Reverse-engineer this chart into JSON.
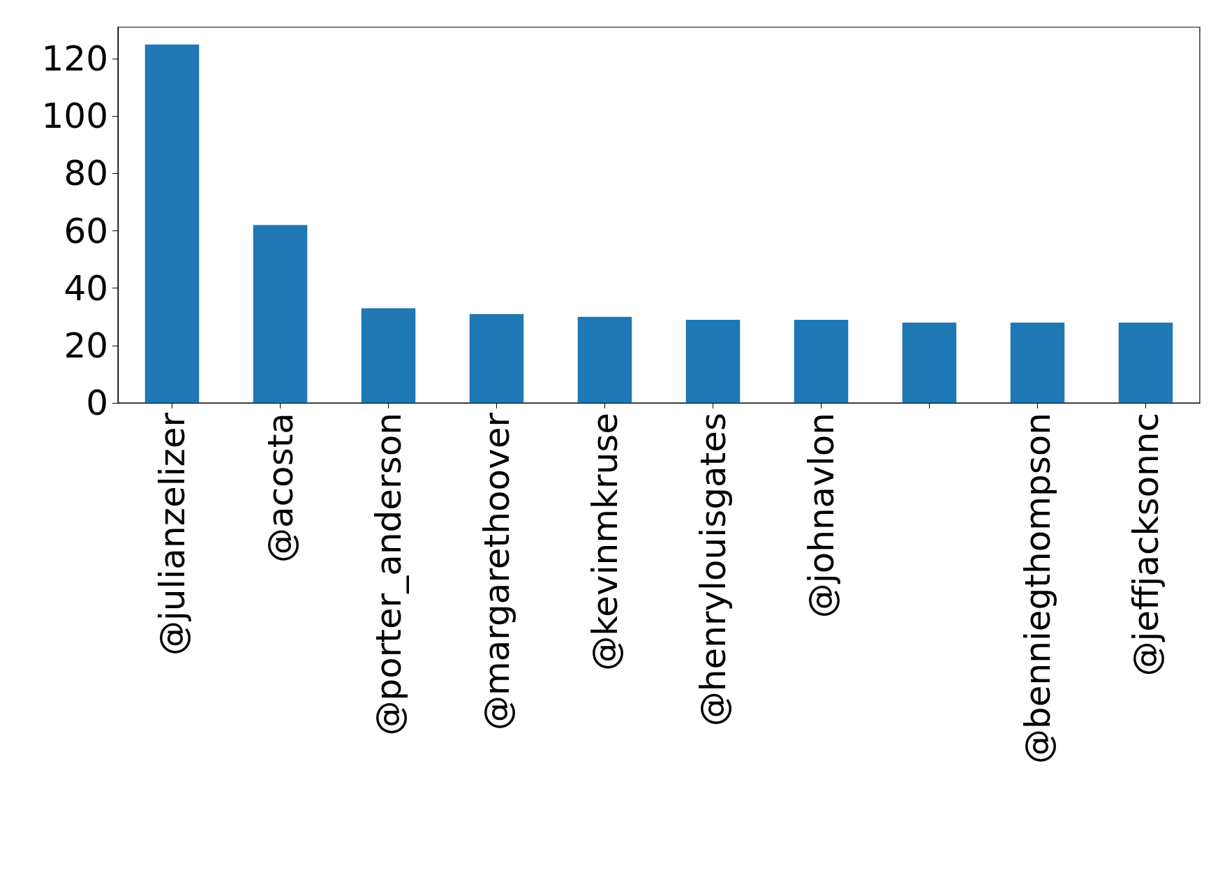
{
  "chart_data": {
    "type": "bar",
    "categories": [
      "@julianzelizer",
      "@acosta",
      "@porter_anderson",
      "@margarethoover",
      "@kevinmkruse",
      "@henrylouisgates",
      "@johnavlon",
      null,
      "@benniegthompson",
      "@jeffjacksonnc"
    ],
    "values": [
      125,
      62,
      33,
      31,
      30,
      29,
      29,
      28,
      28,
      28
    ],
    "color": "#1f77b4",
    "ylim": [
      0,
      131
    ],
    "yticks": [
      0,
      20,
      40,
      60,
      80,
      100,
      120
    ],
    "grid": false
  }
}
